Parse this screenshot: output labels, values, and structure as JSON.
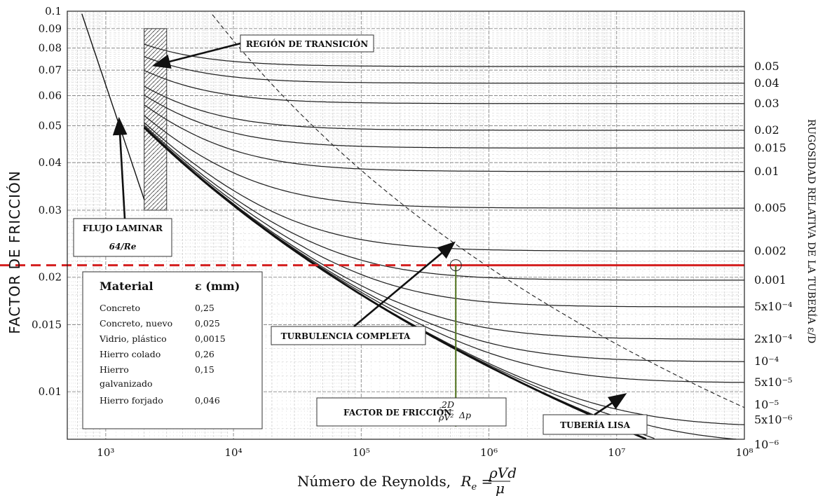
{
  "chart_data": {
    "type": "line",
    "xlabel": "Número de Reynolds, Re = ρVd/μ",
    "xlabel_text": "Número de Reynolds,",
    "ylabel": "FACTOR DE FRICCIÓN",
    "right_label": "RUGOSIDAD RELATIVA DE LA TUBERÍA ε/D",
    "x_scale": "log",
    "y_scale": "log",
    "xlim": [
      500,
      100000000
    ],
    "ylim": [
      0.0075,
      0.1
    ],
    "x_ticks": [
      {
        "value": 1000,
        "label": "10³"
      },
      {
        "value": 10000,
        "label": "10⁴"
      },
      {
        "value": 100000,
        "label": "10⁵"
      },
      {
        "value": 1000000,
        "label": "10⁶"
      },
      {
        "value": 10000000,
        "label": "10⁷"
      },
      {
        "value": 100000000,
        "label": "10⁸"
      }
    ],
    "y_ticks": [
      {
        "value": 0.1,
        "label": "0.1"
      },
      {
        "value": 0.09,
        "label": "0.09"
      },
      {
        "value": 0.08,
        "label": "0.08"
      },
      {
        "value": 0.07,
        "label": "0.07"
      },
      {
        "value": 0.06,
        "label": "0.06"
      },
      {
        "value": 0.05,
        "label": "0.05"
      },
      {
        "value": 0.04,
        "label": "0.04"
      },
      {
        "value": 0.03,
        "label": "0.03"
      },
      {
        "value": 0.02,
        "label": "0.02"
      },
      {
        "value": 0.015,
        "label": "0.015"
      },
      {
        "value": 0.01,
        "label": "0.01"
      }
    ],
    "roughness_curves": [
      {
        "label": "0.05",
        "eps_d": 0.05
      },
      {
        "label": "0.04",
        "eps_d": 0.04
      },
      {
        "label": "0.03",
        "eps_d": 0.03
      },
      {
        "label": "0.02",
        "eps_d": 0.02
      },
      {
        "label": "0.015",
        "eps_d": 0.015
      },
      {
        "label": "0.01",
        "eps_d": 0.01
      },
      {
        "label": "0.005",
        "eps_d": 0.005
      },
      {
        "label": "0.002",
        "eps_d": 0.002
      },
      {
        "label": "0.001",
        "eps_d": 0.001
      },
      {
        "label": "5x10⁻⁴",
        "eps_d": 0.0005
      },
      {
        "label": "2x10⁻⁴",
        "eps_d": 0.0002
      },
      {
        "label": "10⁻⁴",
        "eps_d": 0.0001
      },
      {
        "label": "5x10⁻⁵",
        "eps_d": 5e-05
      },
      {
        "label": "10⁻⁵",
        "eps_d": 1e-05
      },
      {
        "label": "5x10⁻⁶",
        "eps_d": 5e-06
      },
      {
        "label": "10⁻⁶",
        "eps_d": 1e-06
      }
    ],
    "laminar": {
      "label": "64/Re",
      "x_range": [
        650,
        2000
      ]
    },
    "transition_region": {
      "x_range": [
        2000,
        3000
      ],
      "y_range": [
        0.03,
        0.09
      ]
    },
    "highlight": {
      "color": "#d42020",
      "f_value": 0.0215,
      "eps_d": 0.002,
      "reynolds": 550000,
      "vertical_color": "#5a7a2a"
    },
    "annotations": [
      {
        "id": "transition",
        "text": "REGIÓN DE TRANSICIÓN"
      },
      {
        "id": "laminar",
        "text": "FLUJO LAMINAR"
      },
      {
        "id": "turbulence",
        "text": "TURBULENCIA COMPLETA"
      },
      {
        "id": "friction",
        "text": "FACTOR DE FRICCIÓN"
      },
      {
        "id": "smooth",
        "text": "TUBERÍA LISA"
      }
    ],
    "material_table": {
      "headers": [
        "Material",
        "ε (mm)"
      ],
      "rows": [
        [
          "Concreto",
          "0,25"
        ],
        [
          "Concreto, nuevo",
          "0,025"
        ],
        [
          "Vidrio, plástico",
          "0,0015"
        ],
        [
          "Hierro colado",
          "0,26"
        ],
        [
          "Hierro galvanizado",
          "0,15"
        ],
        [
          "Hierro forjado",
          "0,046"
        ]
      ]
    }
  }
}
